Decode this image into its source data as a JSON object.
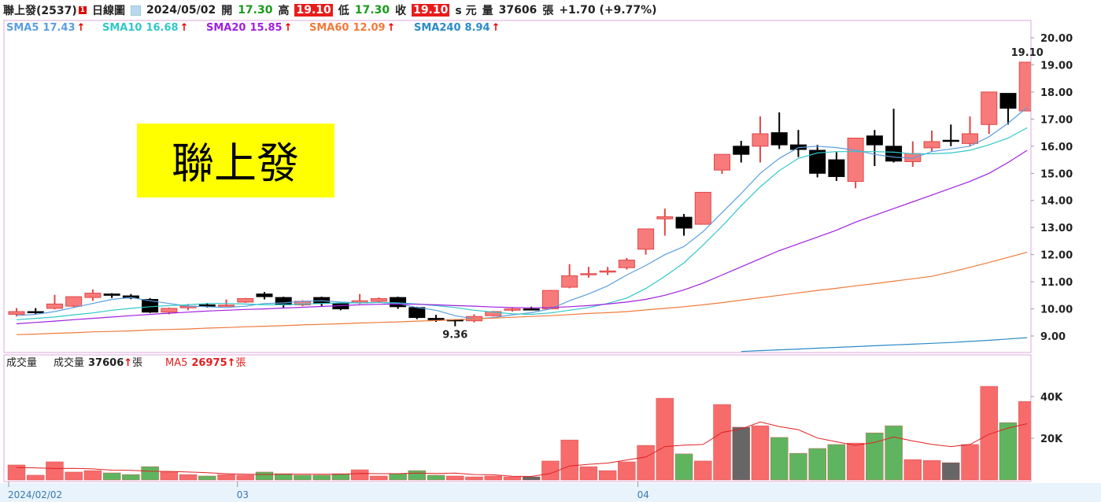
{
  "header": {
    "name": "聯上發(2537)",
    "badge": "1",
    "chart_label": "日線圖",
    "date": "2024/05/02",
    "open_label": "開",
    "open": "17.30",
    "high_label": "高",
    "high": "19.10",
    "low_label": "低",
    "low": "17.30",
    "close_label": "收",
    "close": "19.10",
    "currency": "s 元",
    "volume_label": "量",
    "volume": "37606",
    "volume_unit": "張",
    "change": "+1.70 (+9.77%)"
  },
  "chart_data": [
    {
      "type": "candlestick",
      "name_box": "聯上發",
      "trend_symbol": "↑",
      "up_color": "#f77b7b",
      "down_color": "#000000",
      "open": [
        9.8,
        9.9,
        10.02,
        10.1,
        10.42,
        10.55,
        10.48,
        10.35,
        9.88,
        10.04,
        10.15,
        10.12,
        10.25,
        10.55,
        10.42,
        10.15,
        10.42,
        10.2,
        10.22,
        10.28,
        10.42,
        10.05,
        9.65,
        9.6,
        9.56,
        9.75,
        9.95,
        10.0,
        10.0,
        10.8,
        11.28,
        11.38,
        11.52,
        12.2,
        13.32,
        13.38,
        13.12,
        15.12,
        16.0,
        16.0,
        16.5,
        16.05,
        15.85,
        15.5,
        14.7,
        16.38,
        16.0,
        15.43,
        15.94,
        16.22,
        16.1,
        16.8,
        17.95,
        17.3
      ],
      "high": [
        10.03,
        10.03,
        10.52,
        10.45,
        10.72,
        10.58,
        10.55,
        10.4,
        10.05,
        10.18,
        10.22,
        10.35,
        10.4,
        10.62,
        10.45,
        10.32,
        10.45,
        10.22,
        10.55,
        10.42,
        10.45,
        10.08,
        9.78,
        9.62,
        9.8,
        9.92,
        10.05,
        10.08,
        10.7,
        11.65,
        11.55,
        11.55,
        11.88,
        12.95,
        13.7,
        13.5,
        14.3,
        15.7,
        16.2,
        17.1,
        17.25,
        16.6,
        16.05,
        15.78,
        16.3,
        16.6,
        17.38,
        16.18,
        16.58,
        16.8,
        17.1,
        18.0,
        17.95,
        19.1
      ],
      "low": [
        9.72,
        9.8,
        9.98,
        10.05,
        10.3,
        10.4,
        10.36,
        9.85,
        9.8,
        9.95,
        10.05,
        10.08,
        10.22,
        10.35,
        10.05,
        10.1,
        10.1,
        9.95,
        10.18,
        10.25,
        10.0,
        9.62,
        9.52,
        9.36,
        9.5,
        9.72,
        9.9,
        9.95,
        9.98,
        10.76,
        11.15,
        11.25,
        11.45,
        12.0,
        12.7,
        12.7,
        13.12,
        14.98,
        15.4,
        15.4,
        15.9,
        15.6,
        14.85,
        14.72,
        14.45,
        15.27,
        15.4,
        15.24,
        15.8,
        16.0,
        16.0,
        16.45,
        16.8,
        17.3
      ],
      "close": [
        9.9,
        9.88,
        10.18,
        10.45,
        10.58,
        10.5,
        10.4,
        9.88,
        10.02,
        10.1,
        10.1,
        10.14,
        10.38,
        10.45,
        10.15,
        10.28,
        10.2,
        10.0,
        10.3,
        10.38,
        10.08,
        9.68,
        9.6,
        9.56,
        9.72,
        9.9,
        10.0,
        9.98,
        10.68,
        11.22,
        11.3,
        11.4,
        11.8,
        12.95,
        13.4,
        12.98,
        14.3,
        15.7,
        15.7,
        16.46,
        16.05,
        15.88,
        15.0,
        14.88,
        16.3,
        16.05,
        15.45,
        15.73,
        16.17,
        16.2,
        16.46,
        18.0,
        17.4,
        19.1
      ],
      "annotations": [
        {
          "index": 53,
          "label": "19.10"
        },
        {
          "index": 23,
          "label": "9.36"
        }
      ],
      "series": [
        {
          "name": "SMA5",
          "color": "#5a9fe0",
          "values": [
            9.75,
            9.8,
            9.9,
            10.05,
            10.2,
            10.35,
            10.42,
            10.3,
            10.2,
            10.1,
            10.08,
            10.05,
            10.1,
            10.2,
            10.22,
            10.28,
            10.3,
            10.25,
            10.22,
            10.24,
            10.2,
            10.05,
            9.95,
            9.75,
            9.63,
            9.68,
            9.78,
            9.86,
            10.0,
            10.3,
            10.55,
            10.85,
            11.25,
            11.6,
            12.0,
            12.3,
            12.85,
            13.55,
            14.25,
            15.0,
            15.55,
            15.95,
            16.0,
            15.95,
            15.85,
            15.7,
            15.6,
            15.55,
            15.8,
            15.9,
            16.0,
            16.35,
            16.85,
            17.43
          ]
        },
        {
          "name": "SMA10",
          "color": "#30c8c8",
          "values": [
            9.6,
            9.65,
            9.7,
            9.78,
            9.85,
            9.95,
            10.02,
            10.08,
            10.12,
            10.15,
            10.2,
            10.2,
            10.18,
            10.15,
            10.15,
            10.18,
            10.2,
            10.22,
            10.22,
            10.24,
            10.22,
            10.18,
            10.12,
            10.05,
            9.95,
            9.88,
            9.82,
            9.8,
            9.85,
            9.95,
            10.05,
            10.2,
            10.4,
            10.75,
            11.2,
            11.7,
            12.35,
            13.05,
            13.8,
            14.5,
            15.1,
            15.55,
            15.75,
            15.8,
            15.8,
            15.8,
            15.78,
            15.72,
            15.72,
            15.75,
            15.85,
            16.05,
            16.3,
            16.68
          ]
        },
        {
          "name": "SMA20",
          "color": "#a020e0",
          "values": [
            9.45,
            9.5,
            9.55,
            9.6,
            9.65,
            9.7,
            9.75,
            9.8,
            9.84,
            9.88,
            9.92,
            9.95,
            9.98,
            10.0,
            10.03,
            10.06,
            10.09,
            10.12,
            10.15,
            10.17,
            10.18,
            10.17,
            10.15,
            10.12,
            10.1,
            10.07,
            10.05,
            10.04,
            10.05,
            10.08,
            10.12,
            10.18,
            10.25,
            10.35,
            10.5,
            10.7,
            10.95,
            11.25,
            11.55,
            11.85,
            12.15,
            12.4,
            12.65,
            12.9,
            13.2,
            13.45,
            13.7,
            13.95,
            14.2,
            14.45,
            14.7,
            15.0,
            15.4,
            15.85
          ]
        },
        {
          "name": "SMA60",
          "color": "#f07a3a",
          "values": [
            9.05,
            9.07,
            9.1,
            9.12,
            9.15,
            9.17,
            9.19,
            9.22,
            9.24,
            9.26,
            9.29,
            9.31,
            9.34,
            9.36,
            9.38,
            9.41,
            9.43,
            9.45,
            9.48,
            9.5,
            9.52,
            9.55,
            9.57,
            9.6,
            9.63,
            9.66,
            9.69,
            9.72,
            9.75,
            9.79,
            9.83,
            9.86,
            9.9,
            9.96,
            10.02,
            10.08,
            10.15,
            10.23,
            10.32,
            10.41,
            10.5,
            10.59,
            10.68,
            10.76,
            10.85,
            10.93,
            11.02,
            11.11,
            11.2,
            11.36,
            11.53,
            11.71,
            11.9,
            12.09
          ]
        },
        {
          "name": "SMA240",
          "color": "#2a8cc8",
          "values": [
            null,
            null,
            null,
            null,
            null,
            null,
            null,
            null,
            null,
            null,
            null,
            null,
            null,
            null,
            null,
            null,
            null,
            null,
            null,
            null,
            null,
            null,
            null,
            null,
            null,
            null,
            null,
            null,
            null,
            null,
            null,
            null,
            null,
            null,
            null,
            null,
            null,
            null,
            8.43,
            8.46,
            8.49,
            8.52,
            8.55,
            8.58,
            8.61,
            8.64,
            8.67,
            8.7,
            8.73,
            8.76,
            8.8,
            8.84,
            8.89,
            8.94
          ]
        }
      ],
      "ylim": [
        8.42,
        20.61
      ],
      "yticks": [
        {
          "value": 9,
          "label": "9.00"
        },
        {
          "value": 10,
          "label": "10.00"
        },
        {
          "value": 11,
          "label": "11.00"
        },
        {
          "value": 12,
          "label": "12.00"
        },
        {
          "value": 13,
          "label": "13.00"
        },
        {
          "value": 14,
          "label": "14.00"
        },
        {
          "value": 15,
          "label": "15.00"
        },
        {
          "value": 16,
          "label": "16.00"
        },
        {
          "value": 17,
          "label": "17.00"
        },
        {
          "value": 18,
          "label": "18.00"
        },
        {
          "value": 19,
          "label": "19.00"
        },
        {
          "value": 20,
          "label": "20.00"
        }
      ]
    },
    {
      "type": "bar",
      "title": "成交量",
      "trend_symbol": "↑",
      "unit": "張",
      "categories": [
        "2024/02/02",
        null,
        null,
        null,
        null,
        null,
        null,
        null,
        null,
        null,
        null,
        null,
        "03",
        null,
        null,
        null,
        null,
        null,
        null,
        null,
        null,
        null,
        null,
        null,
        null,
        null,
        null,
        null,
        null,
        null,
        null,
        null,
        null,
        "04",
        null,
        null,
        null,
        null,
        null,
        null,
        null,
        null,
        null,
        null,
        null,
        null,
        null,
        null,
        null,
        null,
        null,
        null,
        null,
        null
      ],
      "series": [
        {
          "name": "成交量",
          "values": [
            7200,
            2300,
            8700,
            3800,
            4500,
            3400,
            2600,
            6400,
            3800,
            2600,
            1900,
            2600,
            2300,
            3800,
            3000,
            2300,
            2300,
            3000,
            4900,
            1900,
            3000,
            4500,
            2300,
            1900,
            1500,
            1900,
            1500,
            1500,
            9100,
            19200,
            6400,
            4500,
            8700,
            16600,
            39200,
            12500,
            9100,
            36200,
            25300,
            26000,
            20400,
            12800,
            15100,
            17000,
            17700,
            22600,
            26000,
            9800,
            9400,
            8300,
            17000,
            44900,
            27500,
            37606
          ],
          "colors": [
            "#f76b6b",
            "#f76b6b",
            "#f76b6b",
            "#f76b6b",
            "#f76b6b",
            "#5fb55f",
            "#5fb55f",
            "#5fb55f",
            "#f76b6b",
            "#f76b6b",
            "#5fb55f",
            "#f76b6b",
            "#f76b6b",
            "#5fb55f",
            "#5fb55f",
            "#5fb55f",
            "#5fb55f",
            "#5fb55f",
            "#f76b6b",
            "#f76b6b",
            "#5fb55f",
            "#5fb55f",
            "#5fb55f",
            "#f76b6b",
            "#f76b6b",
            "#f76b6b",
            "#f76b6b",
            "#666666",
            "#f76b6b",
            "#f76b6b",
            "#f76b6b",
            "#f76b6b",
            "#f76b6b",
            "#f76b6b",
            "#f76b6b",
            "#5fb55f",
            "#f76b6b",
            "#f76b6b",
            "#666666",
            "#f76b6b",
            "#5fb55f",
            "#5fb55f",
            "#5fb55f",
            "#5fb55f",
            "#f76b6b",
            "#5fb55f",
            "#5fb55f",
            "#f76b6b",
            "#f76b6b",
            "#666666",
            "#f76b6b",
            "#f76b6b",
            "#5fb55f",
            "#f76b6b"
          ]
        },
        {
          "name": "MA5",
          "color": "#e02020",
          "values": [
            6000,
            5800,
            5500,
            5600,
            5300,
            4700,
            4600,
            4200,
            4100,
            3800,
            3500,
            3000,
            2700,
            2600,
            2800,
            2800,
            2700,
            2700,
            3100,
            3000,
            3000,
            3300,
            3100,
            3300,
            2600,
            2500,
            1800,
            1700,
            3100,
            6700,
            7500,
            8100,
            9600,
            11000,
            16000,
            16700,
            17000,
            22800,
            24400,
            27800,
            25600,
            24100,
            20100,
            18300,
            16600,
            18000,
            20600,
            18700,
            17100,
            16000,
            17000,
            21900,
            24900,
            26975
          ]
        }
      ],
      "ylim": [
        0,
        59600
      ],
      "yticks": [
        {
          "value": 20000,
          "label": "20K"
        },
        {
          "value": 40000,
          "label": "40K"
        }
      ]
    }
  ]
}
